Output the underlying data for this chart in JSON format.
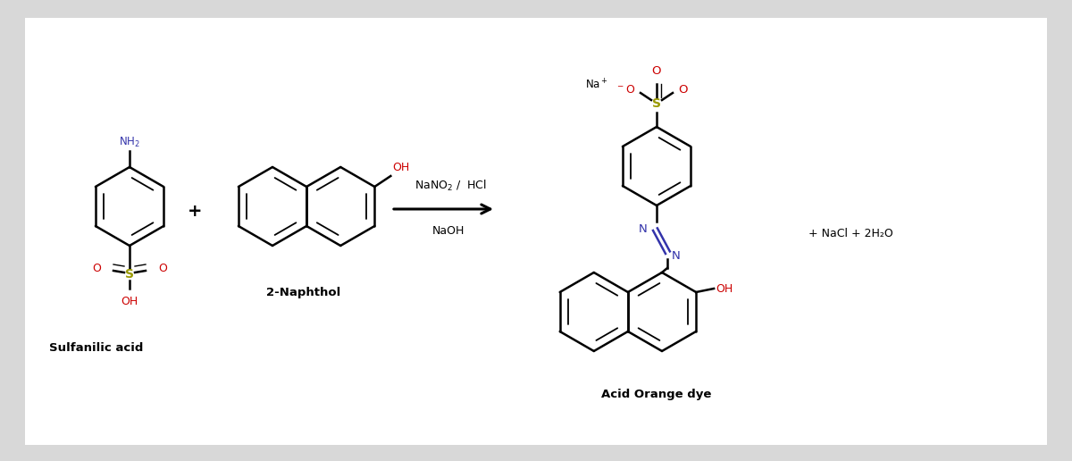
{
  "bg_color": "#d8d8d8",
  "white_bg": "#ffffff",
  "black": "#000000",
  "red": "#cc0000",
  "blue": "#3333aa",
  "sulfur_color": "#999900",
  "lw": 1.8,
  "font_label": 9,
  "font_title": 10,
  "font_plus": 14,
  "title_sulfanilic": "Sulfanilic acid",
  "title_naphthol": "2-Naphthol",
  "title_product": "Acid Orange dye",
  "byproduct": "+ NaCl + 2H₂O"
}
